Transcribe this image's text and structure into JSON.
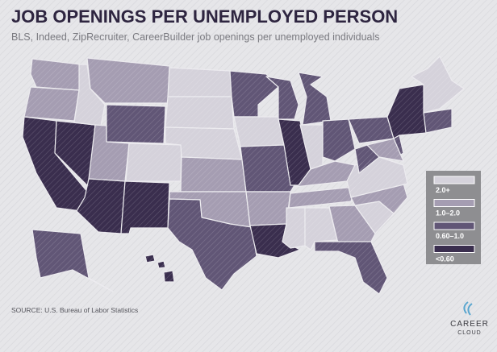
{
  "title": "JOB OPENINGS PER UNEMPLOYED PERSON",
  "subtitle": "BLS, Indeed, ZipRecruiter, CareerBuilder job openings per unemployed individuals",
  "legend": {
    "items": [
      {
        "label": "2.0+",
        "color": "#d5d2db"
      },
      {
        "label": "1.0–2.0",
        "color": "#a59db2"
      },
      {
        "label": "0.60–1.0",
        "color": "#615676"
      },
      {
        "label": "<0.60",
        "color": "#3a2e4e"
      }
    ]
  },
  "source": "SOURCE: U.S. Bureau of Labor Statistics",
  "logo": {
    "line1": "CAREER",
    "line2": "CLOUD"
  }
}
